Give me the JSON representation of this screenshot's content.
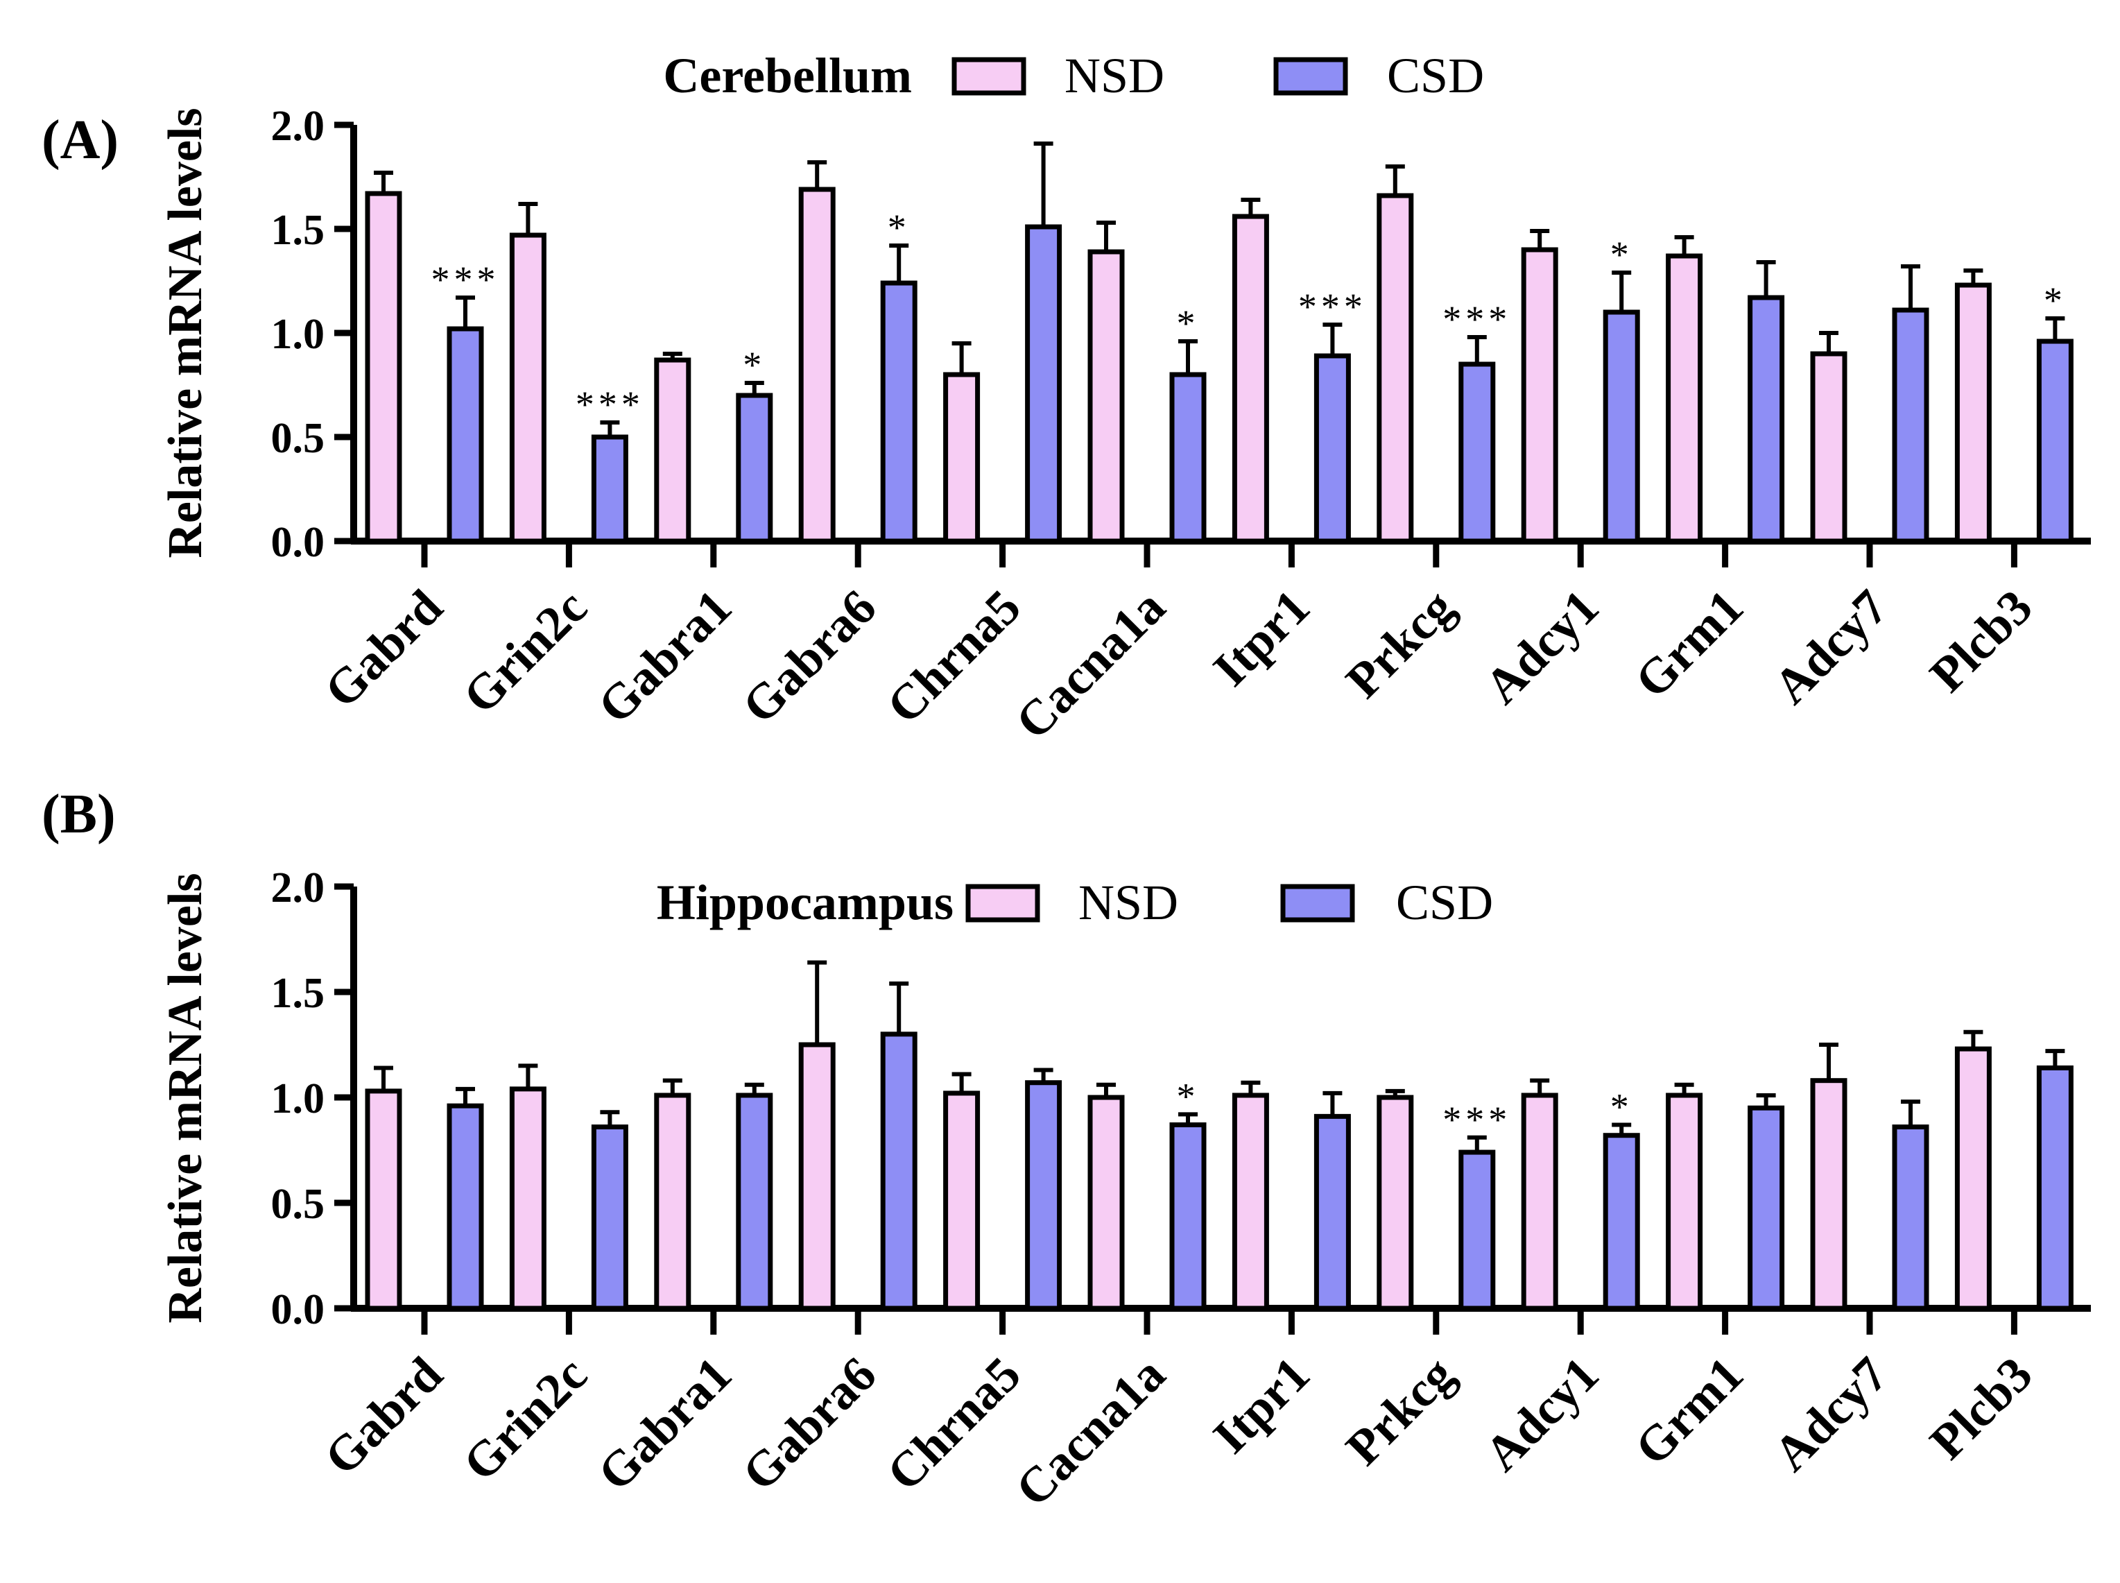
{
  "colors": {
    "nsd": "#f7cdf4",
    "csd": "#8e8ef5",
    "stroke": "#000000"
  },
  "chart_data": [
    {
      "type": "bar",
      "panel_label": "(A)",
      "title": "Cerebellum",
      "xlabel": "",
      "ylabel": "Relative mRNA  levels",
      "ylim": [
        0,
        2.0
      ],
      "yticks": [
        "0.0",
        "0.5",
        "1.0",
        "1.5",
        "2.0"
      ],
      "legend": {
        "position": "top-center",
        "entries": [
          "NSD",
          "CSD"
        ]
      },
      "categories": [
        "Gabrd",
        "Grin2c",
        "Gabra1",
        "Gabra6",
        "Chrna5",
        "Cacna1a",
        "Itpr1",
        "Prkcg",
        "Adcy1",
        "Grm1",
        "Adcy7",
        "Plcb3"
      ],
      "series": [
        {
          "name": "NSD",
          "values": [
            1.67,
            1.47,
            0.87,
            1.69,
            0.8,
            1.39,
            1.56,
            1.66,
            1.4,
            1.37,
            0.9,
            1.23
          ],
          "errors": [
            0.1,
            0.15,
            0.03,
            0.13,
            0.15,
            0.14,
            0.08,
            0.14,
            0.09,
            0.09,
            0.1,
            0.07
          ]
        },
        {
          "name": "CSD",
          "values": [
            1.02,
            0.5,
            0.7,
            1.24,
            1.51,
            0.8,
            0.89,
            0.85,
            1.1,
            1.17,
            1.11,
            0.96
          ],
          "errors": [
            0.15,
            0.07,
            0.06,
            0.18,
            0.4,
            0.16,
            0.15,
            0.13,
            0.19,
            0.17,
            0.21,
            0.11
          ]
        }
      ],
      "significance": [
        "***",
        "***",
        "*",
        "*",
        "",
        "*",
        "***",
        "***",
        "*",
        "",
        "",
        "*"
      ]
    },
    {
      "type": "bar",
      "panel_label": "(B)",
      "title": "Hippocampus",
      "xlabel": "",
      "ylabel": "Relative mRNA  levels",
      "ylim": [
        0,
        2.0
      ],
      "yticks": [
        "0.0",
        "0.5",
        "1.0",
        "1.5",
        "2.0"
      ],
      "legend": {
        "position": "top-center",
        "entries": [
          "NSD",
          "CSD"
        ]
      },
      "categories": [
        "Gabrd",
        "Grin2c",
        "Gabra1",
        "Gabra6",
        "Chrna5",
        "Cacna1a",
        "Itpr1",
        "Prkcg",
        "Adcy1",
        "Grm1",
        "Adcy7",
        "Plcb3"
      ],
      "series": [
        {
          "name": "NSD",
          "values": [
            1.03,
            1.04,
            1.01,
            1.25,
            1.02,
            1.0,
            1.01,
            1.0,
            1.01,
            1.01,
            1.08,
            1.23
          ],
          "errors": [
            0.11,
            0.11,
            0.07,
            0.39,
            0.09,
            0.06,
            0.06,
            0.03,
            0.07,
            0.05,
            0.17,
            0.08
          ]
        },
        {
          "name": "CSD",
          "values": [
            0.96,
            0.86,
            1.01,
            1.3,
            1.07,
            0.87,
            0.91,
            0.74,
            0.82,
            0.95,
            0.86,
            1.14
          ],
          "errors": [
            0.08,
            0.07,
            0.05,
            0.24,
            0.06,
            0.05,
            0.11,
            0.07,
            0.05,
            0.06,
            0.12,
            0.08
          ]
        }
      ],
      "significance": [
        "",
        "",
        "",
        "",
        "",
        "*",
        "",
        "***",
        "*",
        "",
        "",
        ""
      ]
    }
  ]
}
